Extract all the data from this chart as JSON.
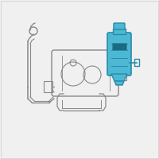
{
  "bg_color": "#f0f0f0",
  "highlight_color": "#4db8d4",
  "highlight_border": "#2a8aaa",
  "line_color": "#888888",
  "dark_line": "#555555",
  "figure_size": [
    2.0,
    2.0
  ],
  "dpi": 100
}
